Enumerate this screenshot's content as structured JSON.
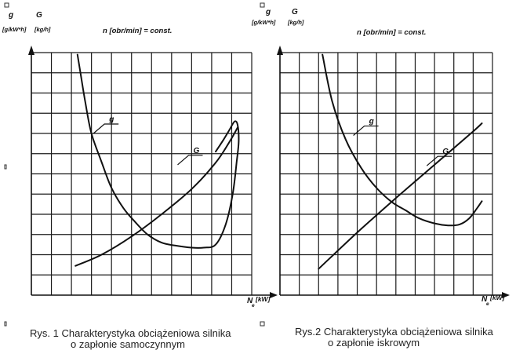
{
  "chart_data": [
    {
      "type": "line",
      "y_axis_labels": [
        {
          "symbol": "g",
          "unit": "[g/kW*h]"
        },
        {
          "symbol": "G",
          "unit": "[kg/h]"
        }
      ],
      "condition": "n [obr/min] = const.",
      "xlabel": "N",
      "xlabel_subscript": "e",
      "xunit": "[kW]",
      "grid": true,
      "xlim": [
        0,
        11
      ],
      "ylim": [
        0,
        12
      ],
      "series": [
        {
          "name": "g",
          "x": [
            2.3,
            2.45,
            2.7,
            3.0,
            3.5,
            4.0,
            4.6,
            5.2,
            5.8,
            6.5,
            7.2,
            8.0,
            8.6,
            9.2,
            9.7,
            10.05,
            10.25,
            10.35,
            10.3,
            10.15,
            9.9,
            9.6,
            9.2
          ],
          "y": [
            11.9,
            11.0,
            9.5,
            8.0,
            6.6,
            5.3,
            4.3,
            3.6,
            3.0,
            2.6,
            2.45,
            2.35,
            2.35,
            2.5,
            3.5,
            5.0,
            6.6,
            7.6,
            8.4,
            8.6,
            8.2,
            7.7,
            7.1
          ],
          "annotation_at": [
            3.1,
            8.0
          ]
        },
        {
          "name": "G",
          "x": [
            2.2,
            3.5,
            5.0,
            6.5,
            8.0,
            9.2,
            9.9,
            10.3
          ],
          "y": [
            1.45,
            2.0,
            2.9,
            4.0,
            5.25,
            6.55,
            7.6,
            8.3
          ],
          "annotation_at": [
            7.3,
            6.45
          ]
        }
      ],
      "caption_lines": [
        "Rys. 1 Charakterystyka obciążeniowa silnika",
        "o zapłonie samoczynnym"
      ]
    },
    {
      "type": "line",
      "y_axis_labels": [
        {
          "symbol": "g",
          "unit": "[g/kW*h]"
        },
        {
          "symbol": "G",
          "unit": "[kg/h]"
        }
      ],
      "condition": "n [obr/min] = const.",
      "xlabel": "N",
      "xlabel_subscript": "e",
      "xunit": "[kW]",
      "grid": true,
      "xlim": [
        0,
        11
      ],
      "ylim": [
        0,
        12
      ],
      "series": [
        {
          "name": "g",
          "x": [
            2.2,
            2.7,
            3.4,
            4.2,
            5.0,
            5.8,
            6.5,
            7.2,
            8.0,
            8.7,
            9.3,
            9.8,
            10.2,
            10.45
          ],
          "y": [
            11.9,
            9.6,
            7.7,
            6.3,
            5.3,
            4.6,
            4.2,
            3.8,
            3.55,
            3.45,
            3.5,
            3.8,
            4.3,
            4.65
          ],
          "annotation_at": [
            3.8,
            7.9
          ]
        },
        {
          "name": "G",
          "x": [
            2.0,
            4.0,
            6.0,
            8.0,
            10.0,
            10.45
          ],
          "y": [
            1.3,
            3.1,
            4.8,
            6.45,
            8.1,
            8.5
          ],
          "annotation_at": [
            7.6,
            6.4
          ]
        }
      ],
      "caption_lines": [
        "Rys.2 Charakterystyka obciążeniowa silnika",
        "o zapłonie iskrowym"
      ]
    }
  ]
}
